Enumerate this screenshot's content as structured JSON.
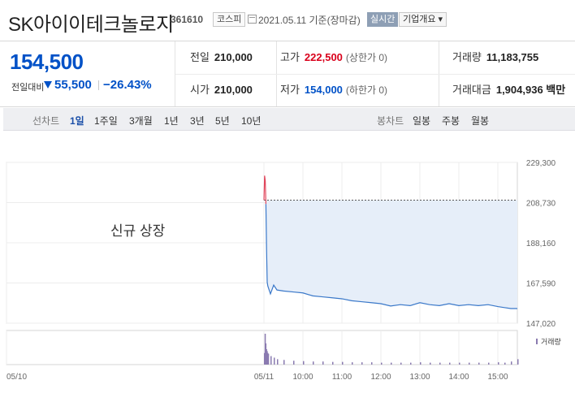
{
  "stock": {
    "name": "SK아이이테크놀로지",
    "code": "361610",
    "market": "코스피",
    "date_text": "2021.05.11 기준(장마감)",
    "realtime_label": "실시간",
    "company_info_label": "기업개요 ▾"
  },
  "price": {
    "current": "154,500",
    "change_label": "전일대비",
    "change_value": "55,500",
    "change_pct": "−26.43%",
    "direction": "down"
  },
  "stats": {
    "prev_close_label": "전일",
    "prev_close": "210,000",
    "high_label": "고가",
    "high": "222,500",
    "high_note": "(상한가 0)",
    "volume_label": "거래량",
    "volume": "11,183,755",
    "open_label": "시가",
    "open": "210,000",
    "low_label": "저가",
    "low": "154,000",
    "low_note": "(하한가 0)",
    "amount_label": "거래대금",
    "amount": "1,904,936 백만"
  },
  "tabs": {
    "line_chart_label": "선차트",
    "line_periods": [
      "1일",
      "1주일",
      "3개월",
      "1년",
      "3년",
      "5년",
      "10년"
    ],
    "active_period": "1일",
    "candle_chart_label": "봉차트",
    "candle_periods": [
      "일봉",
      "주봉",
      "월봉"
    ]
  },
  "chart": {
    "annotation": "신규 상장",
    "volume_legend": "거래량",
    "colors": {
      "up": "#e0445a",
      "down": "#3a78c9",
      "fill": "#e6eef9",
      "baseline": "#555555"
    }
  },
  "chart_data": {
    "type": "line",
    "title": "",
    "ylabel": "",
    "xlabel": "",
    "yticks": [
      "229,300",
      "208,730",
      "188,160",
      "167,590",
      "147,020"
    ],
    "ylim": [
      147020,
      229300
    ],
    "xticks": [
      "05/10",
      "05/11",
      "10:00",
      "11:00",
      "12:00",
      "13:00",
      "14:00",
      "15:00"
    ],
    "baseline": 210000,
    "grid": true,
    "series": [
      {
        "x": [
          "09:00",
          "09:01",
          "09:02",
          "09:03",
          "09:04",
          "09:05",
          "09:06",
          "09:10",
          "09:15",
          "09:20",
          "09:30",
          "09:45",
          "10:00",
          "10:15",
          "10:30",
          "10:45",
          "11:00",
          "11:15",
          "11:30",
          "11:45",
          "12:00",
          "12:15",
          "12:30",
          "12:45",
          "13:00",
          "13:15",
          "13:30",
          "13:45",
          "14:00",
          "14:15",
          "14:30",
          "14:45",
          "15:00",
          "15:10",
          "15:20",
          "15:30"
        ],
        "values": [
          210000,
          222500,
          220000,
          208000,
          185000,
          168000,
          166000,
          162000,
          166500,
          164000,
          163500,
          163000,
          162500,
          161000,
          160500,
          160000,
          159500,
          158500,
          158000,
          157500,
          157000,
          155800,
          156500,
          156000,
          157500,
          156500,
          156000,
          157000,
          156000,
          156500,
          156000,
          156500,
          155500,
          155000,
          154500,
          154500
        ]
      }
    ],
    "volume": [
      30,
      80,
      55,
      40,
      35,
      30,
      28,
      22,
      18,
      14,
      12,
      10,
      9,
      8,
      8,
      7,
      7,
      6,
      6,
      6,
      5,
      5,
      5,
      5,
      6,
      5,
      5,
      5,
      5,
      5,
      5,
      5,
      6,
      5,
      8,
      14
    ]
  }
}
